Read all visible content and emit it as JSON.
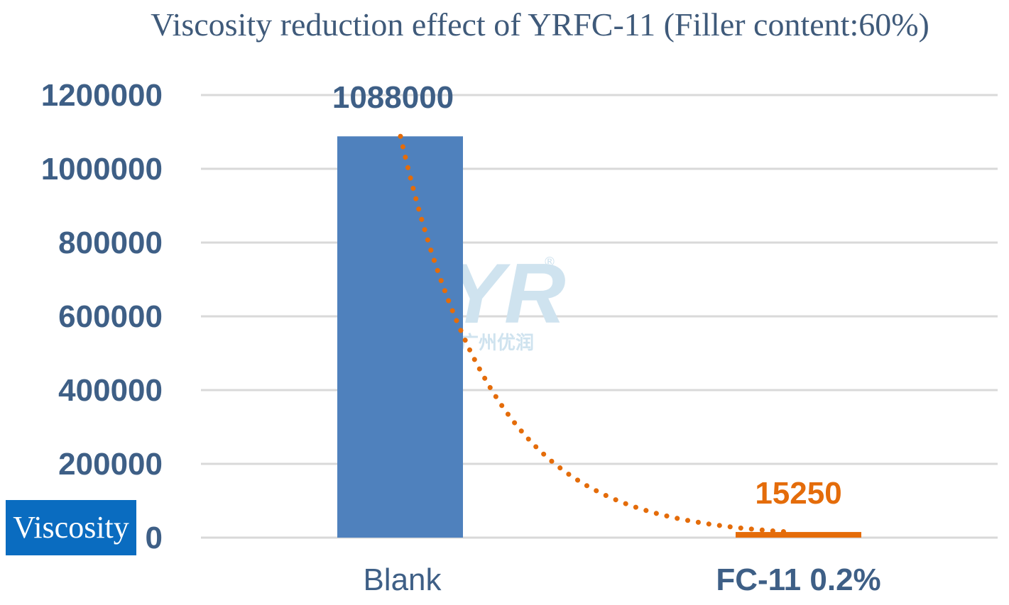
{
  "chart_data": {
    "type": "bar",
    "title": "Viscosity reduction effect of YRFC-11 (Filler content:60%)",
    "ylabel": "Viscosity",
    "xlabel": "",
    "categories": [
      "Blank",
      "FC-11 0.2%"
    ],
    "values": [
      1088000,
      15250
    ],
    "data_labels": [
      "1088000",
      "15250"
    ],
    "bar_colors": [
      "#4f81bd",
      "#e46c0a"
    ],
    "data_label_colors": [
      "#3e5f86",
      "#e46c0a"
    ],
    "ylim": [
      0,
      1200000
    ],
    "yticks": [
      0,
      200000,
      400000,
      600000,
      800000,
      1000000,
      1200000
    ],
    "ytick_labels": [
      "0",
      "200000",
      "400000",
      "600000",
      "800000",
      "1000000",
      "1200000"
    ],
    "grid": true,
    "trendline": {
      "type": "exponential",
      "style": "dotted",
      "color": "#e46c0a"
    },
    "legend": "none"
  },
  "watermark": {
    "mark": "YR",
    "registered": "®",
    "text": "广州优润"
  }
}
